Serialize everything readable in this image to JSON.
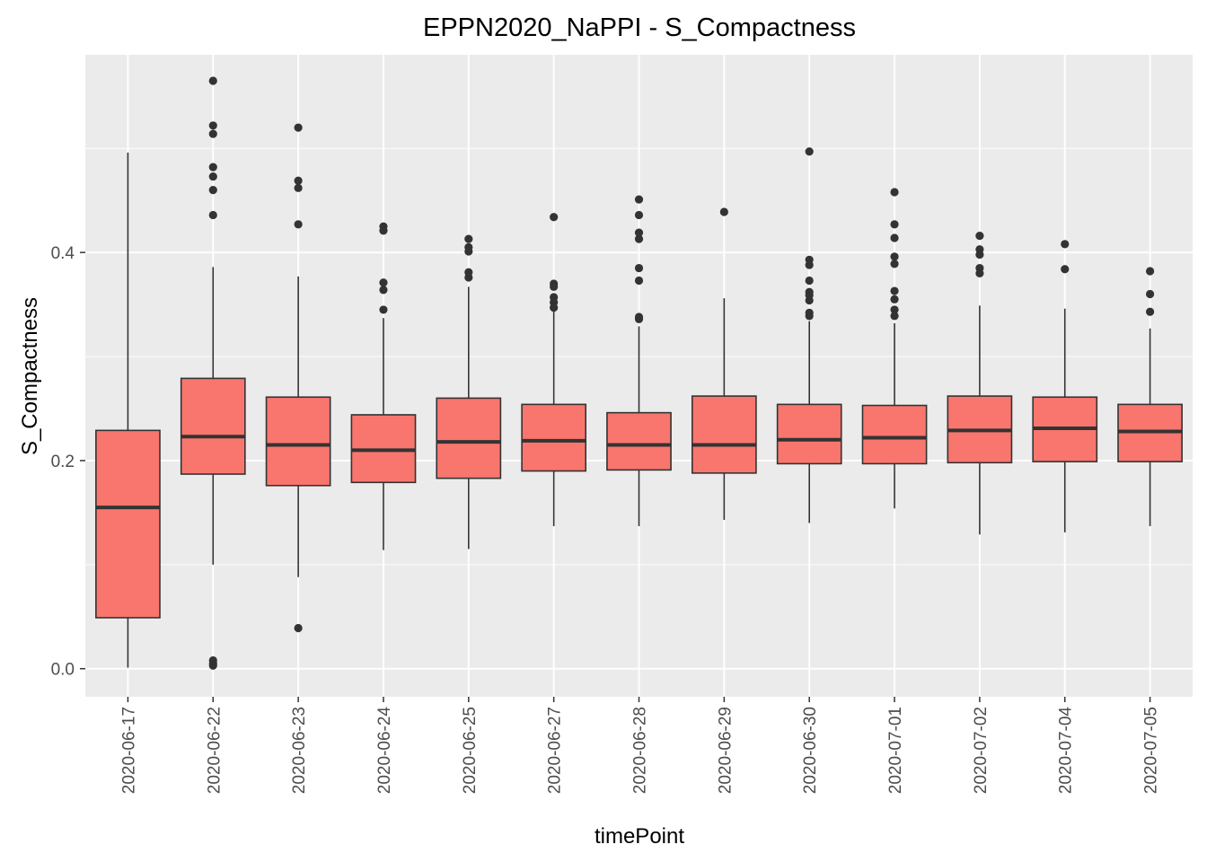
{
  "chart_data": {
    "type": "boxplot",
    "title": "EPPN2020_NaPPI - S_Compactness",
    "xlabel": "timePoint",
    "ylabel": "S_Compactness",
    "ylim": [
      -0.027,
      0.59
    ],
    "yticks": [
      0.0,
      0.2,
      0.4
    ],
    "ytick_labels": [
      "0.0",
      "0.2",
      "0.4"
    ],
    "grid": true,
    "legend": "none",
    "colors": {
      "panel_background": "#EBEBEB",
      "grid": "#FFFFFF",
      "box_fill": "#F8766D",
      "box_stroke": "#333333",
      "text": "#000000",
      "tick_text": "#4D4D4D"
    },
    "categories": [
      "2020-06-17",
      "2020-06-22",
      "2020-06-23",
      "2020-06-24",
      "2020-06-25",
      "2020-06-27",
      "2020-06-28",
      "2020-06-29",
      "2020-06-30",
      "2020-07-01",
      "2020-07-02",
      "2020-07-04",
      "2020-07-05"
    ],
    "boxes": [
      {
        "category": "2020-06-17",
        "q1": 0.049,
        "median": 0.155,
        "q3": 0.229,
        "whisker_low": 0.001,
        "whisker_high": 0.496,
        "outliers": []
      },
      {
        "category": "2020-06-22",
        "q1": 0.187,
        "median": 0.223,
        "q3": 0.279,
        "whisker_low": 0.1,
        "whisker_high": 0.386,
        "outliers": [
          0.565,
          0.522,
          0.514,
          0.482,
          0.473,
          0.46,
          0.436,
          0.008,
          0.005,
          0.003
        ]
      },
      {
        "category": "2020-06-23",
        "q1": 0.176,
        "median": 0.215,
        "q3": 0.261,
        "whisker_low": 0.088,
        "whisker_high": 0.377,
        "outliers": [
          0.52,
          0.469,
          0.462,
          0.427,
          0.039
        ]
      },
      {
        "category": "2020-06-24",
        "q1": 0.179,
        "median": 0.21,
        "q3": 0.244,
        "whisker_low": 0.114,
        "whisker_high": 0.337,
        "outliers": [
          0.425,
          0.421,
          0.371,
          0.364,
          0.345
        ]
      },
      {
        "category": "2020-06-25",
        "q1": 0.183,
        "median": 0.218,
        "q3": 0.26,
        "whisker_low": 0.115,
        "whisker_high": 0.367,
        "outliers": [
          0.413,
          0.405,
          0.401,
          0.381,
          0.376
        ]
      },
      {
        "category": "2020-06-27",
        "q1": 0.19,
        "median": 0.219,
        "q3": 0.254,
        "whisker_low": 0.137,
        "whisker_high": 0.345,
        "outliers": [
          0.434,
          0.37,
          0.367,
          0.357,
          0.352,
          0.347
        ]
      },
      {
        "category": "2020-06-28",
        "q1": 0.191,
        "median": 0.215,
        "q3": 0.246,
        "whisker_low": 0.137,
        "whisker_high": 0.329,
        "outliers": [
          0.451,
          0.436,
          0.419,
          0.413,
          0.385,
          0.373,
          0.338,
          0.336
        ]
      },
      {
        "category": "2020-06-29",
        "q1": 0.188,
        "median": 0.215,
        "q3": 0.262,
        "whisker_low": 0.143,
        "whisker_high": 0.356,
        "outliers": [
          0.439
        ]
      },
      {
        "category": "2020-06-30",
        "q1": 0.197,
        "median": 0.22,
        "q3": 0.254,
        "whisker_low": 0.14,
        "whisker_high": 0.334,
        "outliers": [
          0.497,
          0.393,
          0.388,
          0.373,
          0.362,
          0.359,
          0.354,
          0.342,
          0.339
        ]
      },
      {
        "category": "2020-07-01",
        "q1": 0.197,
        "median": 0.222,
        "q3": 0.253,
        "whisker_low": 0.154,
        "whisker_high": 0.332,
        "outliers": [
          0.458,
          0.427,
          0.414,
          0.396,
          0.389,
          0.363,
          0.355,
          0.345,
          0.339
        ]
      },
      {
        "category": "2020-07-02",
        "q1": 0.198,
        "median": 0.229,
        "q3": 0.262,
        "whisker_low": 0.129,
        "whisker_high": 0.349,
        "outliers": [
          0.416,
          0.403,
          0.398,
          0.385,
          0.38
        ]
      },
      {
        "category": "2020-07-04",
        "q1": 0.199,
        "median": 0.231,
        "q3": 0.261,
        "whisker_low": 0.131,
        "whisker_high": 0.346,
        "outliers": [
          0.408,
          0.384
        ]
      },
      {
        "category": "2020-07-05",
        "q1": 0.199,
        "median": 0.228,
        "q3": 0.254,
        "whisker_low": 0.137,
        "whisker_high": 0.327,
        "outliers": [
          0.382,
          0.36,
          0.343
        ]
      }
    ]
  }
}
